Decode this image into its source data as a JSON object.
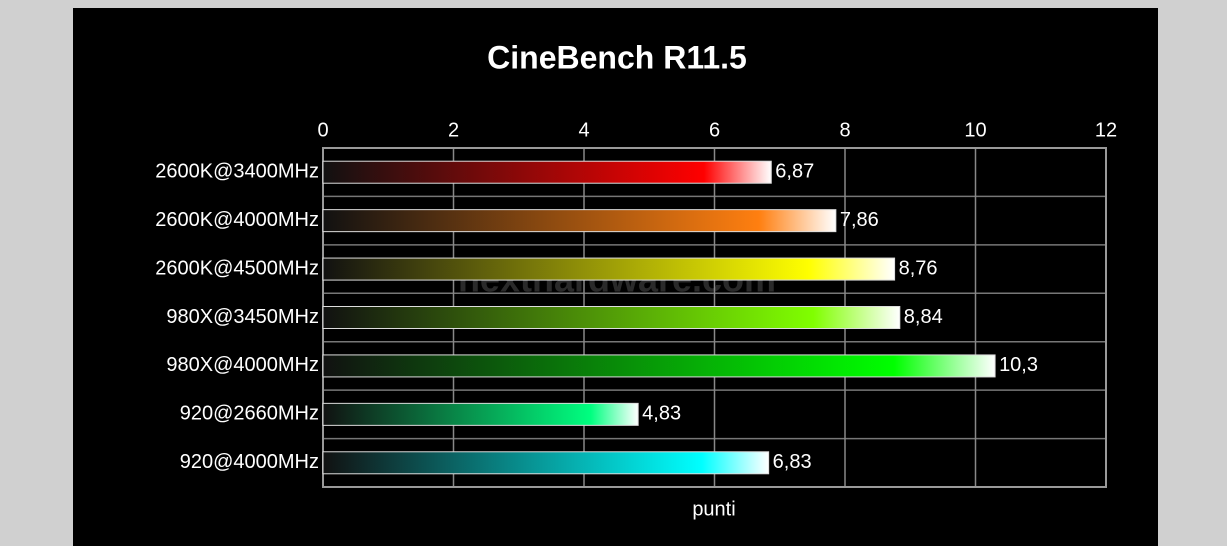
{
  "chart_data": {
    "type": "hbar",
    "title": "CineBench R11.5",
    "xlabel": "punti",
    "watermark": "nexthardware.com",
    "categories": [
      "2600K@3400MHz",
      "2600K@4000MHz",
      "2600K@4500MHz",
      "980X@3450MHz",
      "980X@4000MHz",
      "920@2660MHz",
      "920@4000MHz"
    ],
    "values": [
      6.87,
      7.86,
      8.76,
      8.84,
      10.3,
      4.83,
      6.83
    ],
    "value_labels": [
      "6,87",
      "7,86",
      "8,76",
      "8,84",
      "10,3",
      "4,83",
      "6,83"
    ],
    "colors": [
      "#ff0000",
      "#ff7f10",
      "#ffff00",
      "#80ff00",
      "#00ff00",
      "#00ff80",
      "#00ffff"
    ],
    "xlim": [
      0,
      12
    ],
    "xticks": [
      0,
      2,
      4,
      6,
      8,
      10,
      12
    ],
    "grid": true
  }
}
